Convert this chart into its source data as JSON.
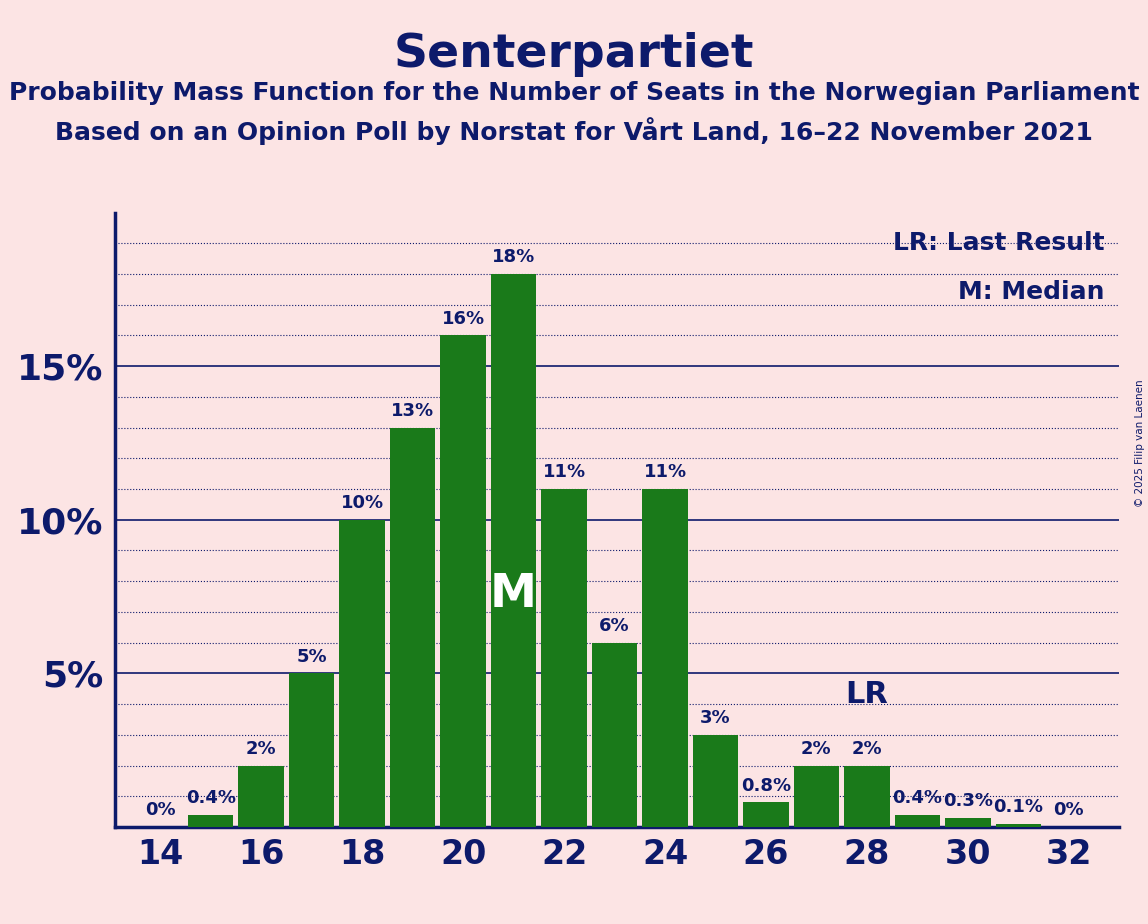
{
  "title": "Senterpartiet",
  "subtitle1": "Probability Mass Function for the Number of Seats in the Norwegian Parliament",
  "subtitle2": "Based on an Opinion Poll by Norstat for Vårt Land, 16–22 November 2021",
  "copyright": "© 2025 Filip van Laenen",
  "seats": [
    14,
    15,
    16,
    17,
    18,
    19,
    20,
    21,
    22,
    23,
    24,
    25,
    26,
    27,
    28,
    29,
    30,
    31,
    32
  ],
  "values": [
    0.0,
    0.4,
    2.0,
    5.0,
    10.0,
    13.0,
    16.0,
    18.0,
    11.0,
    6.0,
    11.0,
    3.0,
    0.8,
    2.0,
    2.0,
    0.4,
    0.3,
    0.1,
    0.0
  ],
  "labels": [
    "0%",
    "0.4%",
    "2%",
    "5%",
    "10%",
    "13%",
    "16%",
    "18%",
    "11%",
    "6%",
    "11%",
    "3%",
    "0.8%",
    "2%",
    "2%",
    "0.4%",
    "0.3%",
    "0.1%",
    "0%"
  ],
  "bar_color": "#1a7a1a",
  "background_color": "#fce4e4",
  "text_color": "#0d1a6b",
  "median_seat": 21,
  "lr_seat": 28,
  "lr_label": "LR",
  "median_label": "M",
  "legend_lr": "LR: Last Result",
  "legend_m": "M: Median",
  "title_fontsize": 34,
  "subtitle_fontsize": 18,
  "label_fontsize": 13,
  "axis_tick_fontsize": 24,
  "ytick_fontsize": 26,
  "median_fontsize": 34,
  "lr_fontsize": 22,
  "legend_fontsize": 18
}
